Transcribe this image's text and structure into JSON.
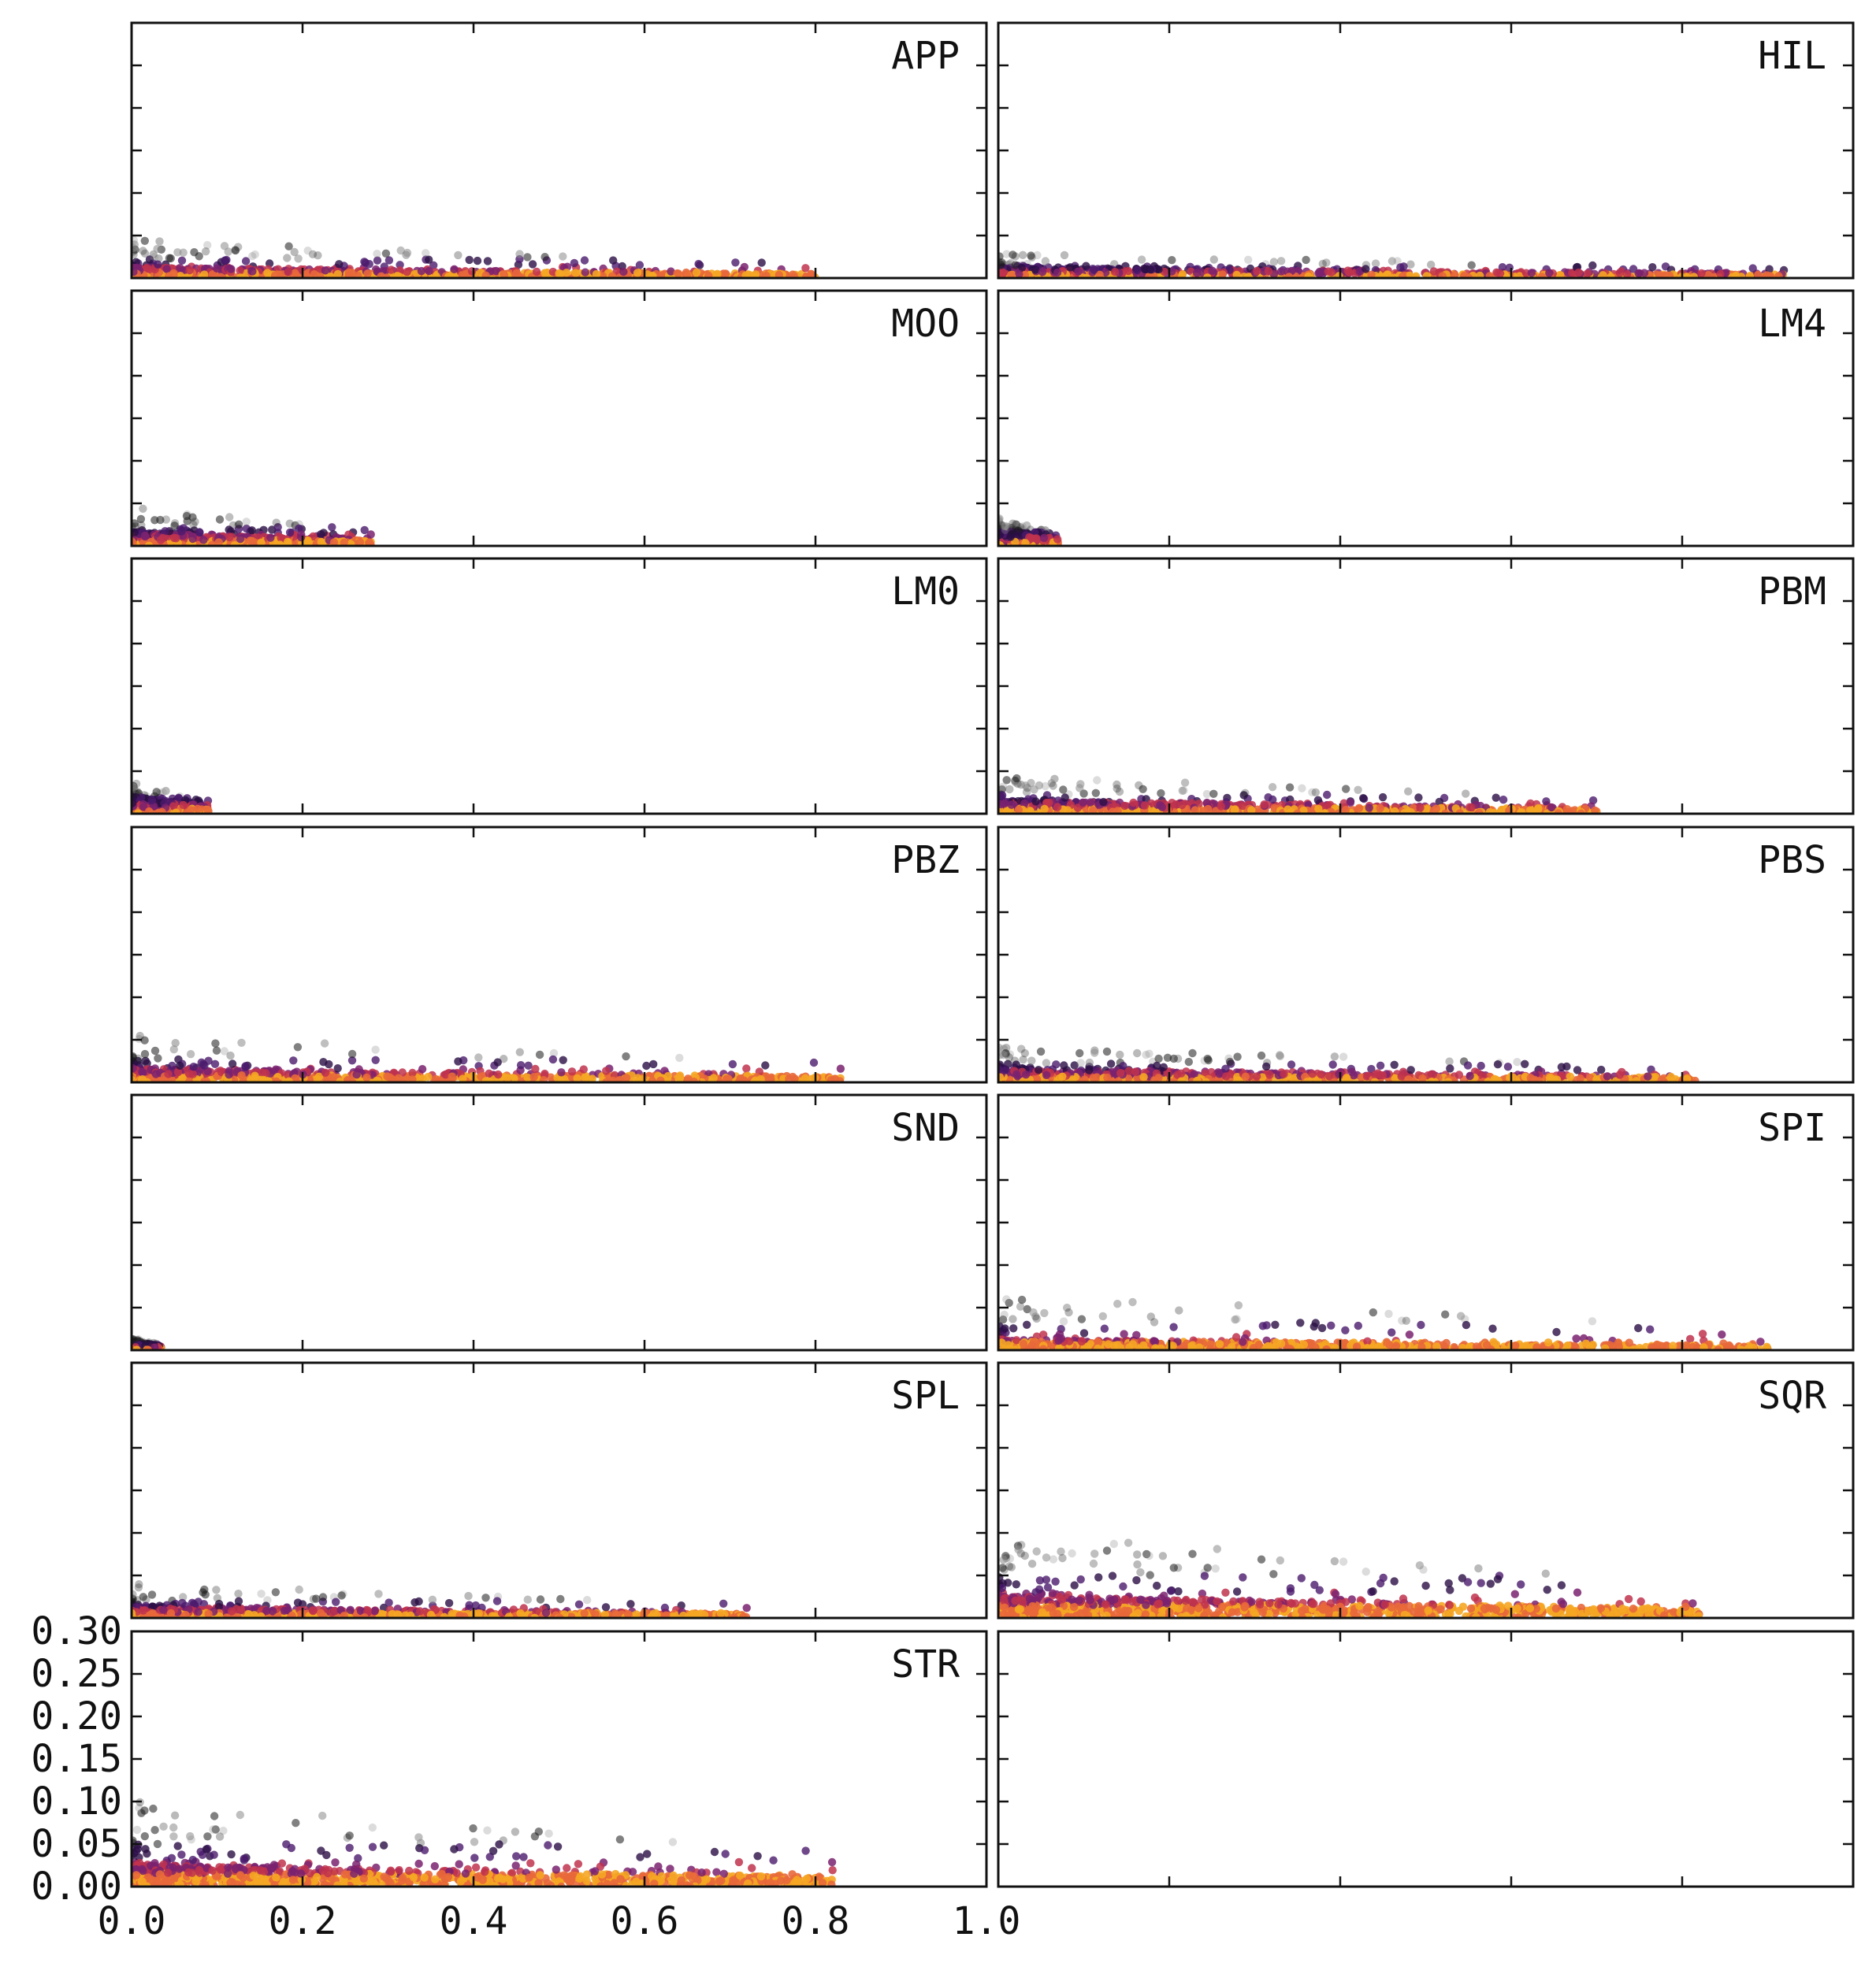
{
  "chart_data": {
    "type": "scatter",
    "layout": {
      "rows": 7,
      "cols": 2,
      "shared_axes": true
    },
    "xlim": [
      0.0,
      1.0
    ],
    "ylim": [
      0.0,
      0.3
    ],
    "x_ticks": [
      "0.0",
      "0.2",
      "0.4",
      "0.6",
      "0.8",
      "1.0"
    ],
    "y_ticks": [
      "0.00",
      "0.05",
      "0.10",
      "0.15",
      "0.20",
      "0.25",
      "0.30"
    ],
    "grid": false,
    "colormap": {
      "dense_low": "#f5a623",
      "mid": "#c0324e",
      "high": "#4b1a6d",
      "outlier": "#1a1a1a"
    },
    "panels": [
      {
        "label": "APP",
        "x_extent": 0.8,
        "band": 0.012,
        "peak": 0.045,
        "n": 900,
        "dist": "wide"
      },
      {
        "label": "HIL",
        "x_extent": 0.92,
        "band": 0.012,
        "peak": 0.03,
        "n": 900,
        "dist": "wide"
      },
      {
        "label": "MOO",
        "x_extent": 0.28,
        "band": 0.015,
        "peak": 0.045,
        "n": 700,
        "dist": "short"
      },
      {
        "label": "LM4",
        "x_extent": 0.07,
        "band": 0.02,
        "peak": 0.035,
        "n": 400,
        "dist": "tiny"
      },
      {
        "label": "LM0",
        "x_extent": 0.09,
        "band": 0.02,
        "peak": 0.04,
        "n": 400,
        "dist": "tiny"
      },
      {
        "label": "PBM",
        "x_extent": 0.7,
        "band": 0.015,
        "peak": 0.045,
        "n": 900,
        "dist": "wide"
      },
      {
        "label": "PBZ",
        "x_extent": 0.83,
        "band": 0.015,
        "peak": 0.055,
        "n": 900,
        "dist": "wide"
      },
      {
        "label": "PBS",
        "x_extent": 0.82,
        "band": 0.015,
        "peak": 0.045,
        "n": 900,
        "dist": "wide"
      },
      {
        "label": "SND",
        "x_extent": 0.035,
        "band": 0.01,
        "peak": 0.015,
        "n": 200,
        "dist": "tiny"
      },
      {
        "label": "SPI",
        "x_extent": 0.9,
        "band": 0.012,
        "peak": 0.065,
        "n": 900,
        "dist": "wide"
      },
      {
        "label": "SPL",
        "x_extent": 0.72,
        "band": 0.012,
        "peak": 0.04,
        "n": 900,
        "dist": "wide"
      },
      {
        "label": "SQR",
        "x_extent": 0.82,
        "band": 0.025,
        "peak": 0.1,
        "n": 1100,
        "dist": "wide"
      },
      {
        "label": "STR",
        "x_extent": 0.82,
        "band": 0.025,
        "peak": 0.1,
        "n": 1200,
        "dist": "wide"
      },
      {
        "label": "",
        "x_extent": 0,
        "band": 0,
        "peak": 0,
        "n": 0,
        "dist": "empty"
      }
    ]
  }
}
